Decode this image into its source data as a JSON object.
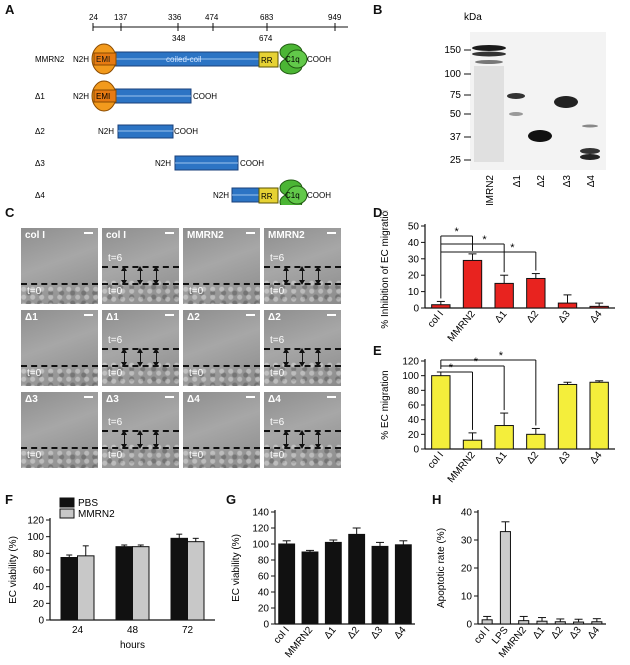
{
  "panels": {
    "A": "A",
    "B": "B",
    "C": "C",
    "D": "D",
    "E": "E",
    "F": "F",
    "G": "G",
    "H": "H"
  },
  "panelA": {
    "ruler_top": [
      "24",
      "137",
      "336",
      "474",
      "683",
      "949"
    ],
    "ruler_bottom": [
      "348",
      "674"
    ],
    "constructs": [
      {
        "name": "MMRN2",
        "n": "N2H",
        "c": "COOH"
      },
      {
        "name": "Δ1",
        "n": "N2H",
        "c": "COOH"
      },
      {
        "name": "Δ2",
        "n": "N2H",
        "c": "COOH"
      },
      {
        "name": "Δ3",
        "n": "N2H",
        "c": "COOH"
      },
      {
        "name": "Δ4",
        "n": "N2H",
        "c": "COOH"
      }
    ],
    "domains": {
      "emi": "EMI",
      "coiled": "coiled-coil",
      "rr": "RR",
      "c1q": "C1q"
    },
    "colors": {
      "emi": "#f29a1d",
      "coil": "#2c74c4",
      "rr": "#e6d234",
      "c1q": "#4bb534"
    }
  },
  "panelB": {
    "unit": "kDa",
    "markers": [
      "150",
      "100",
      "75",
      "50",
      "37",
      "25"
    ],
    "lanes": [
      "MMRN2",
      "Δ1",
      "Δ2",
      "Δ3",
      "Δ4"
    ]
  },
  "panelC": {
    "tiles": [
      {
        "label": "col I",
        "t6": false
      },
      {
        "label": "col I",
        "t6": true
      },
      {
        "label": "MMRN2",
        "t6": false
      },
      {
        "label": "MMRN2",
        "t6": true
      },
      {
        "label": "Δ1",
        "t6": false
      },
      {
        "label": "Δ1",
        "t6": true
      },
      {
        "label": "Δ2",
        "t6": false
      },
      {
        "label": "Δ2",
        "t6": true
      },
      {
        "label": "Δ3",
        "t6": false
      },
      {
        "label": "Δ3",
        "t6": true
      },
      {
        "label": "Δ4",
        "t6": false
      },
      {
        "label": "Δ4",
        "t6": true
      }
    ],
    "t0": "t=0",
    "t6": "t=6"
  },
  "chart_data": [
    {
      "id": "D",
      "type": "bar",
      "ylabel": "% Inhibition of EC migration",
      "ylim": [
        0,
        50
      ],
      "yticks": [
        "0",
        "10",
        "20",
        "30",
        "40",
        "50"
      ],
      "categories": [
        "col I",
        "MMRN2",
        "Δ1",
        "Δ2",
        "Δ3",
        "Δ4"
      ],
      "values": [
        2,
        29,
        15,
        18,
        3,
        1
      ],
      "errors": [
        2,
        4,
        5,
        3,
        5,
        2
      ],
      "colors": [
        "#e8231f",
        "#e8231f",
        "#e8231f",
        "#e8231f",
        "#e8231f",
        "#e8231f"
      ],
      "significance": "*"
    },
    {
      "id": "E",
      "type": "bar",
      "ylabel": "% EC migration",
      "ylim": [
        0,
        120
      ],
      "yticks": [
        "0",
        "20",
        "40",
        "60",
        "80",
        "100",
        "120"
      ],
      "categories": [
        "col I",
        "MMRN2",
        "Δ1",
        "Δ2",
        "Δ3",
        "Δ4"
      ],
      "values": [
        100,
        12,
        32,
        20,
        88,
        91
      ],
      "errors": [
        5,
        10,
        17,
        8,
        3,
        2
      ],
      "colors": [
        "#f4ee3b",
        "#f4ee3b",
        "#f4ee3b",
        "#f4ee3b",
        "#f4ee3b",
        "#f4ee3b"
      ],
      "significance": "*"
    },
    {
      "id": "F",
      "type": "bar",
      "ylabel": "EC viability (%)",
      "xlabel": "hours",
      "ylim": [
        0,
        120
      ],
      "yticks": [
        "0",
        "20",
        "40",
        "60",
        "80",
        "100",
        "120"
      ],
      "categories": [
        "24",
        "48",
        "72"
      ],
      "series": [
        {
          "name": "PBS",
          "values": [
            75,
            88,
            98
          ],
          "errors": [
            3,
            2,
            5
          ],
          "color": "#111111"
        },
        {
          "name": "MMRN2",
          "values": [
            77,
            88,
            94
          ],
          "errors": [
            12,
            2,
            4
          ],
          "color": "#c8c8c8"
        }
      ]
    },
    {
      "id": "G",
      "type": "bar",
      "ylabel": "EC viability (%)",
      "ylim": [
        0,
        140
      ],
      "yticks": [
        "0",
        "20",
        "40",
        "60",
        "80",
        "100",
        "120",
        "140"
      ],
      "categories": [
        "col I",
        "MMRN2",
        "Δ1",
        "Δ2",
        "Δ3",
        "Δ4"
      ],
      "values": [
        100,
        90,
        102,
        112,
        97,
        99
      ],
      "errors": [
        4,
        2,
        3,
        8,
        5,
        5
      ],
      "colors": [
        "#111111",
        "#111111",
        "#111111",
        "#111111",
        "#111111",
        "#111111"
      ]
    },
    {
      "id": "H",
      "type": "bar",
      "ylabel": "Apoptotic rate (%)",
      "ylim": [
        0,
        40
      ],
      "yticks": [
        "0",
        "10",
        "20",
        "30",
        "40"
      ],
      "categories": [
        "col I",
        "LPS",
        "MMRN2",
        "Δ1",
        "Δ2",
        "Δ3",
        "Δ4"
      ],
      "values": [
        1.5,
        33,
        1.2,
        1.0,
        0.8,
        0.7,
        0.8
      ],
      "errors": [
        1.2,
        3.5,
        1.5,
        1.3,
        1.0,
        1.0,
        1.1
      ],
      "colors": [
        "#cccccc",
        "#cccccc",
        "#cccccc",
        "#cccccc",
        "#cccccc",
        "#cccccc",
        "#cccccc"
      ]
    }
  ]
}
